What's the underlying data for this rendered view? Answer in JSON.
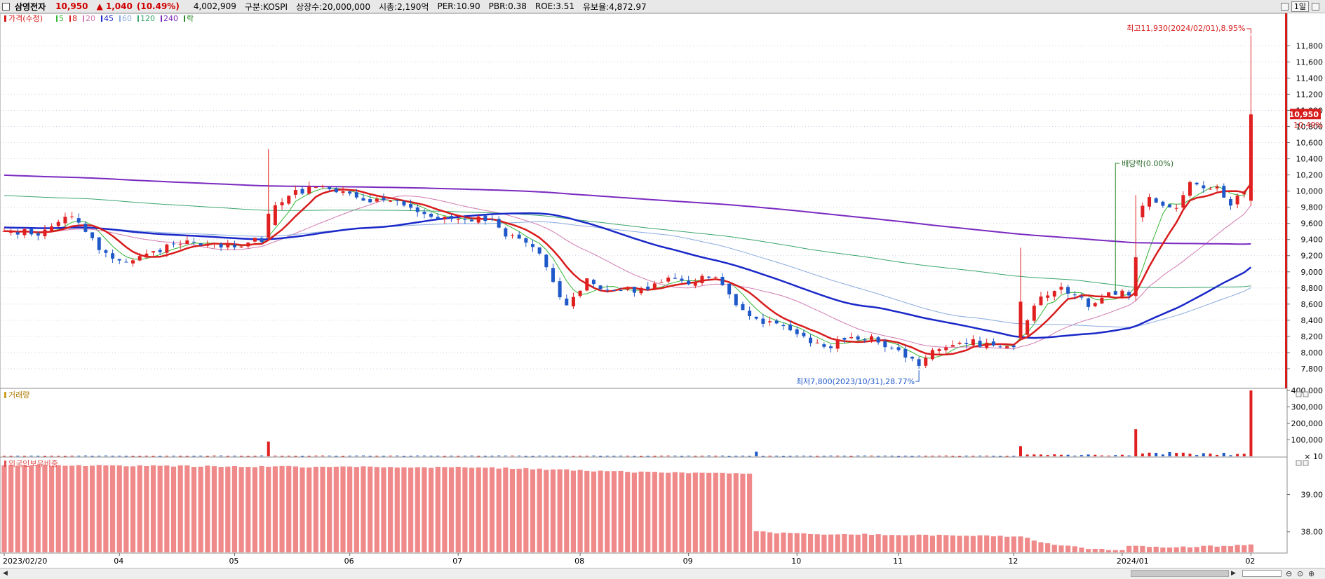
{
  "header": {
    "name": "삼영전자",
    "price": "10,950",
    "change": "▲ 1,040",
    "change_pct": "(10.49%)",
    "volume": "4,002,909",
    "market": "구분:KOSPI",
    "shares": "상장수:20,000,000",
    "mktcap": "시총:2,190억",
    "per": "PER:10.90",
    "pbr": "PBR:0.38",
    "roe": "ROE:3.51",
    "float": "유보율:4,872.97",
    "period_button": "1일"
  },
  "colors": {
    "up": "#e02020",
    "down": "#1f58c8",
    "ma5": "#33b533",
    "ma8": "#d81c1c",
    "ma20": "#d17ab0",
    "ma45": "#1a28c8",
    "ma60": "#88aade",
    "ma120": "#3aa56e",
    "ma240": "#7a2ac0",
    "foreign_bar": "#f08a8a",
    "grid": "#c8d2e6"
  },
  "legend": {
    "price_label": "가격(수정)",
    "items": [
      {
        "label": "5",
        "color": "#33b533"
      },
      {
        "label": "8",
        "color": "#d81c1c"
      },
      {
        "label": "20",
        "color": "#d17ab0"
      },
      {
        "label": "45",
        "color": "#1a28c8"
      },
      {
        "label": "60",
        "color": "#88aade"
      },
      {
        "label": "120",
        "color": "#3aa56e"
      },
      {
        "label": "240",
        "color": "#7a2ac0"
      },
      {
        "label": "락",
        "color": "#2a8a2a"
      }
    ],
    "volume_label": "거래량",
    "foreign_label": "외국인보유비중"
  },
  "chart_data": {
    "type": "candlestick",
    "x_labels": [
      "2023/02/20",
      "04",
      "05",
      "06",
      "07",
      "08",
      "09",
      "10",
      "11",
      "12",
      "2024/01",
      "02"
    ],
    "price_axis": {
      "ticks": [
        "11,800",
        "11,600",
        "11,400",
        "11,200",
        "11,000",
        "10,800",
        "10,600",
        "10,400",
        "10,200",
        "10,000",
        "9,800",
        "9,600",
        "9,400",
        "9,200",
        "9,000",
        "8,800",
        "8,600",
        "8,400",
        "8,200",
        "8,000",
        "7,800"
      ],
      "range": [
        7600,
        12150
      ]
    },
    "current_price_tag": "10,950",
    "current_pct_tag": "10.49%",
    "annotations": {
      "high": "최고11,930(2024/02/01),8.95%",
      "low": "최저7,800(2023/10/31),28.77%",
      "dividend": "배당락(0.00%)"
    },
    "volume_axis": {
      "ticks": [
        "400,000",
        "300,000",
        "200,000",
        "100,000"
      ],
      "multiplier": "× 10",
      "max": 4000000
    },
    "foreign_axis": {
      "ticks": [
        "39.00",
        "38.00"
      ],
      "range": [
        37.45,
        39.95
      ]
    },
    "price_anchors": [
      [
        0,
        9520
      ],
      [
        5,
        9480
      ],
      [
        10,
        9700
      ],
      [
        14,
        9280
      ],
      [
        18,
        9120
      ],
      [
        22,
        9250
      ],
      [
        26,
        9380
      ],
      [
        30,
        9350
      ],
      [
        34,
        9330
      ],
      [
        38,
        9400
      ],
      [
        40,
        9800
      ],
      [
        43,
        10000
      ],
      [
        47,
        10050
      ],
      [
        51,
        9950
      ],
      [
        55,
        9880
      ],
      [
        59,
        9820
      ],
      [
        62,
        9720
      ],
      [
        66,
        9620
      ],
      [
        70,
        9650
      ],
      [
        72,
        9600
      ],
      [
        75,
        9420
      ],
      [
        79,
        9250
      ],
      [
        83,
        8550
      ],
      [
        86,
        8880
      ],
      [
        89,
        8800
      ],
      [
        93,
        8750
      ],
      [
        97,
        8900
      ],
      [
        101,
        8880
      ],
      [
        105,
        8950
      ],
      [
        109,
        8500
      ],
      [
        113,
        8350
      ],
      [
        117,
        8250
      ],
      [
        121,
        8050
      ],
      [
        125,
        8200
      ],
      [
        129,
        8150
      ],
      [
        133,
        7950
      ],
      [
        135,
        7830
      ],
      [
        137,
        8000
      ],
      [
        141,
        8150
      ],
      [
        145,
        8100
      ],
      [
        149,
        8100
      ],
      [
        150,
        8200
      ],
      [
        152,
        8600
      ],
      [
        156,
        8800
      ],
      [
        160,
        8600
      ],
      [
        164,
        8750
      ],
      [
        166,
        8700
      ],
      [
        167,
        9700
      ],
      [
        169,
        9900
      ],
      [
        171,
        9800
      ],
      [
        173,
        9750
      ],
      [
        175,
        10150
      ],
      [
        177,
        10050
      ],
      [
        179,
        10050
      ],
      [
        181,
        9800
      ],
      [
        183,
        10000
      ],
      [
        184,
        10950
      ]
    ],
    "special_bars": [
      {
        "index": 39,
        "open": 9420,
        "close": 9720,
        "high": 10520,
        "low": 9380
      },
      {
        "index": 150,
        "open": 8180,
        "close": 8630,
        "high": 9300,
        "low": 8160
      },
      {
        "index": 167,
        "open": 8700,
        "close": 9180,
        "high": 9950,
        "low": 8640
      },
      {
        "index": 184,
        "open": 9880,
        "close": 10950,
        "high": 11930,
        "low": 9820
      }
    ],
    "volume_anchors": [
      [
        0,
        30000
      ],
      [
        39,
        900000
      ],
      [
        111,
        280000
      ],
      [
        150,
        620000
      ],
      [
        167,
        1650000
      ],
      [
        184,
        4000000
      ]
    ],
    "foreign_anchors": [
      [
        0,
        39.78
      ],
      [
        10,
        39.78
      ],
      [
        40,
        39.75
      ],
      [
        70,
        39.73
      ],
      [
        94,
        39.6
      ],
      [
        110,
        39.55
      ],
      [
        111,
        38.0
      ],
      [
        118,
        37.95
      ],
      [
        150,
        37.88
      ],
      [
        153,
        37.72
      ],
      [
        160,
        37.55
      ],
      [
        165,
        37.5
      ],
      [
        166,
        37.62
      ],
      [
        172,
        37.58
      ],
      [
        184,
        37.65
      ]
    ]
  }
}
